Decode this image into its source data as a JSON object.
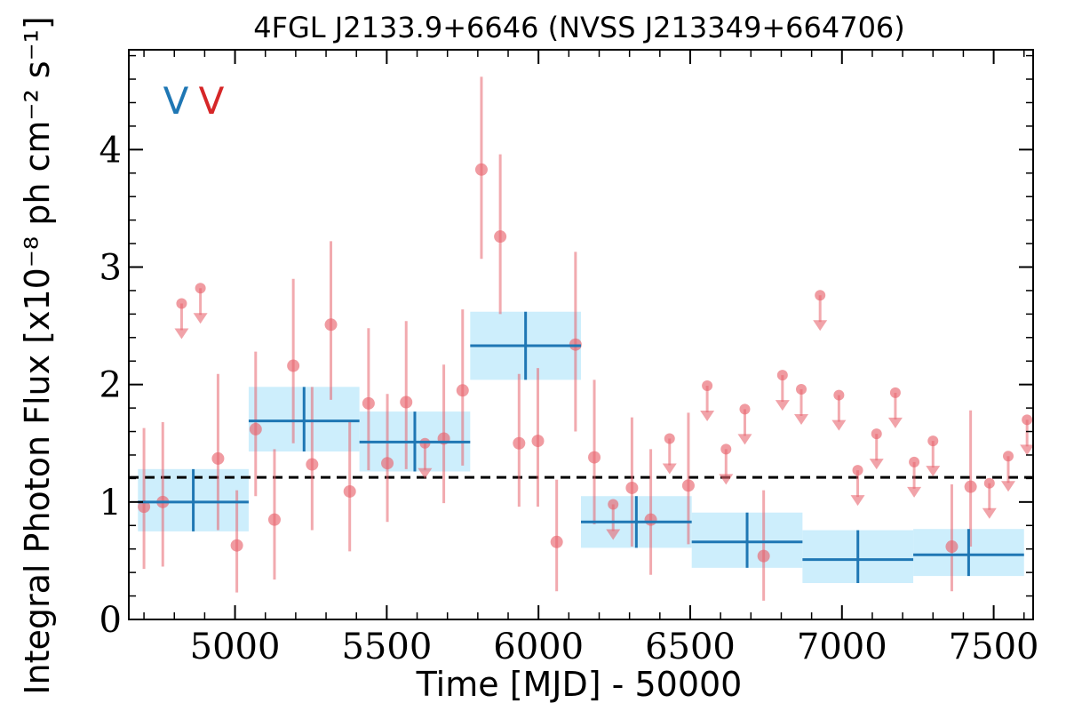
{
  "chart_data": {
    "type": "scatter",
    "title": "4FGL J2133.9+6646 (NVSS J213349+664706)",
    "xlabel": "Time [MJD] - 50000",
    "ylabel": "Integral Photon Flux [x10⁻⁸ ph cm⁻² s⁻¹]",
    "xlim": [
      4650,
      7630
    ],
    "ylim": [
      0,
      4.85
    ],
    "xticks": [
      5000,
      5500,
      6000,
      6500,
      7000,
      7500
    ],
    "yticks": [
      0,
      1,
      2,
      3,
      4
    ],
    "xtick_labels": [
      "5000",
      "5500",
      "6000",
      "6500",
      "7000",
      "7500"
    ],
    "ytick_labels": [
      "0",
      "1",
      "2",
      "3",
      "4"
    ],
    "markers": [
      {
        "label": "V",
        "color": "#1f77b4"
      },
      {
        "label": "V",
        "color": "#d62728"
      }
    ],
    "reference_line": {
      "y": 1.21,
      "style": "dashed",
      "color": "#000000"
    },
    "series": [
      {
        "kind": "yearly bins",
        "color": "#1f77b4",
        "band_color": "#cdeefc",
        "bins": [
          {
            "x0": 4680,
            "x1": 5045,
            "y": 1.0,
            "ylo": 0.75,
            "yhi": 1.28
          },
          {
            "x0": 5045,
            "x1": 5410,
            "y": 1.69,
            "ylo": 1.43,
            "yhi": 1.98
          },
          {
            "x0": 5410,
            "x1": 5775,
            "y": 1.51,
            "ylo": 1.26,
            "yhi": 1.77
          },
          {
            "x0": 5775,
            "x1": 6140,
            "y": 2.33,
            "ylo": 2.04,
            "yhi": 2.62
          },
          {
            "x0": 6140,
            "x1": 6505,
            "y": 0.83,
            "ylo": 0.61,
            "yhi": 1.05
          },
          {
            "x0": 6505,
            "x1": 6870,
            "y": 0.66,
            "ylo": 0.44,
            "yhi": 0.91
          },
          {
            "x0": 6870,
            "x1": 7235,
            "y": 0.51,
            "ylo": 0.31,
            "yhi": 0.76
          },
          {
            "x0": 7235,
            "x1": 7600,
            "y": 0.55,
            "ylo": 0.37,
            "yhi": 0.77
          }
        ]
      },
      {
        "kind": "monthly points",
        "color": "#e8656f",
        "points": [
          {
            "x": 4700,
            "y": 0.96,
            "ylo": 0.43,
            "yhi": 1.63
          },
          {
            "x": 4762,
            "y": 1.0,
            "ylo": 0.45,
            "yhi": 1.68
          },
          {
            "x": 4944,
            "y": 1.37,
            "ylo": 0.76,
            "yhi": 2.09
          },
          {
            "x": 5006,
            "y": 0.63,
            "ylo": 0.23,
            "yhi": 1.1
          },
          {
            "x": 5068,
            "y": 1.62,
            "ylo": 1.05,
            "yhi": 2.28
          },
          {
            "x": 5130,
            "y": 0.85,
            "ylo": 0.34,
            "yhi": 1.45
          },
          {
            "x": 5192,
            "y": 2.16,
            "ylo": 1.5,
            "yhi": 2.9
          },
          {
            "x": 5254,
            "y": 1.32,
            "ylo": 0.76,
            "yhi": 1.98
          },
          {
            "x": 5316,
            "y": 2.51,
            "ylo": 1.87,
            "yhi": 3.22
          },
          {
            "x": 5378,
            "y": 1.09,
            "ylo": 0.58,
            "yhi": 1.69
          },
          {
            "x": 5440,
            "y": 1.84,
            "ylo": 1.27,
            "yhi": 2.48
          },
          {
            "x": 5502,
            "y": 1.33,
            "ylo": 0.83,
            "yhi": 1.92
          },
          {
            "x": 5564,
            "y": 1.85,
            "ylo": 1.28,
            "yhi": 2.54
          },
          {
            "x": 5688,
            "y": 1.54,
            "ylo": 0.99,
            "yhi": 2.17
          },
          {
            "x": 5750,
            "y": 1.95,
            "ylo": 1.31,
            "yhi": 2.64
          },
          {
            "x": 5812,
            "y": 3.83,
            "ylo": 3.07,
            "yhi": 4.62
          },
          {
            "x": 5874,
            "y": 3.26,
            "ylo": 2.6,
            "yhi": 3.96
          },
          {
            "x": 5936,
            "y": 1.5,
            "ylo": 0.96,
            "yhi": 2.09
          },
          {
            "x": 5998,
            "y": 1.52,
            "ylo": 0.96,
            "yhi": 2.14
          },
          {
            "x": 6060,
            "y": 0.66,
            "ylo": 0.24,
            "yhi": 1.19
          },
          {
            "x": 6122,
            "y": 2.34,
            "ylo": 1.6,
            "yhi": 3.13
          },
          {
            "x": 6184,
            "y": 1.38,
            "ylo": 0.81,
            "yhi": 2.04
          },
          {
            "x": 6308,
            "y": 1.12,
            "ylo": 0.62,
            "yhi": 1.72
          },
          {
            "x": 6370,
            "y": 0.85,
            "ylo": 0.38,
            "yhi": 1.45
          },
          {
            "x": 6494,
            "y": 1.14,
            "ylo": 0.64,
            "yhi": 1.76
          },
          {
            "x": 6742,
            "y": 0.54,
            "ylo": 0.16,
            "yhi": 1.1
          },
          {
            "x": 7362,
            "y": 0.62,
            "ylo": 0.24,
            "yhi": 1.15
          },
          {
            "x": 7424,
            "y": 1.13,
            "ylo": 0.62,
            "yhi": 1.78
          }
        ],
        "upper_limits": [
          {
            "x": 4824,
            "y": 2.69
          },
          {
            "x": 4886,
            "y": 2.82
          },
          {
            "x": 5626,
            "y": 1.5
          },
          {
            "x": 6246,
            "y": 0.98
          },
          {
            "x": 6432,
            "y": 1.54
          },
          {
            "x": 6556,
            "y": 1.99
          },
          {
            "x": 6618,
            "y": 1.45
          },
          {
            "x": 6680,
            "y": 1.79
          },
          {
            "x": 6804,
            "y": 2.08
          },
          {
            "x": 6866,
            "y": 1.96
          },
          {
            "x": 6928,
            "y": 2.76
          },
          {
            "x": 6990,
            "y": 1.91
          },
          {
            "x": 7052,
            "y": 1.27
          },
          {
            "x": 7114,
            "y": 1.58
          },
          {
            "x": 7176,
            "y": 1.93
          },
          {
            "x": 7238,
            "y": 1.34
          },
          {
            "x": 7300,
            "y": 1.52
          },
          {
            "x": 7486,
            "y": 1.16
          },
          {
            "x": 7548,
            "y": 1.39
          },
          {
            "x": 7610,
            "y": 1.7
          }
        ]
      }
    ]
  }
}
